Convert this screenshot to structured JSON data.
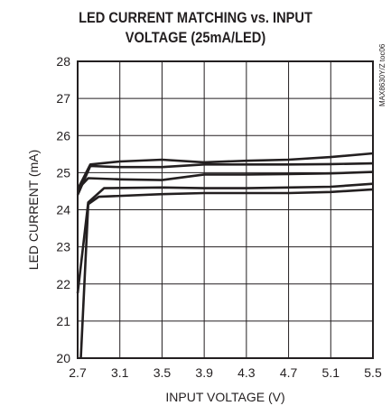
{
  "chart_data": {
    "type": "line",
    "title_line1": "LED CURRENT MATCHING vs. INPUT",
    "title_line2": "VOLTAGE (25mA/LED)",
    "xlabel": "INPUT VOLTAGE (V)",
    "ylabel": "LED CURRENT (mA)",
    "code": "MAX8630Y/Z toc06",
    "xlim": [
      2.7,
      5.5
    ],
    "ylim": [
      20,
      28
    ],
    "xticks": [
      "2.7",
      "3.1",
      "3.5",
      "3.9",
      "4.3",
      "4.7",
      "5.1",
      "5.5"
    ],
    "yticks": [
      "20",
      "21",
      "22",
      "23",
      "24",
      "25",
      "26",
      "27",
      "28"
    ],
    "grid": true,
    "series": [
      {
        "values": [
          [
            2.7,
            24.55
          ],
          [
            2.82,
            25.22
          ],
          [
            3.1,
            25.3
          ],
          [
            3.5,
            25.35
          ],
          [
            3.9,
            25.28
          ],
          [
            4.3,
            25.32
          ],
          [
            4.7,
            25.35
          ],
          [
            5.1,
            25.42
          ],
          [
            5.5,
            25.52
          ]
        ]
      },
      {
        "values": [
          [
            2.7,
            24.4
          ],
          [
            2.82,
            25.18
          ],
          [
            3.1,
            25.15
          ],
          [
            3.5,
            25.15
          ],
          [
            3.9,
            25.22
          ],
          [
            4.3,
            25.22
          ],
          [
            4.7,
            25.22
          ],
          [
            5.1,
            25.23
          ],
          [
            5.5,
            25.25
          ]
        ]
      },
      {
        "values": [
          [
            2.7,
            24.55
          ],
          [
            2.8,
            24.85
          ],
          [
            3.1,
            24.82
          ],
          [
            3.5,
            24.8
          ],
          [
            3.9,
            24.95
          ],
          [
            4.3,
            24.95
          ],
          [
            4.7,
            24.96
          ],
          [
            5.1,
            24.98
          ],
          [
            5.5,
            25.02
          ]
        ]
      },
      {
        "values": [
          [
            2.7,
            21.75
          ],
          [
            2.8,
            24.2
          ],
          [
            2.95,
            24.58
          ],
          [
            3.5,
            24.6
          ],
          [
            3.9,
            24.58
          ],
          [
            4.3,
            24.58
          ],
          [
            4.7,
            24.6
          ],
          [
            5.1,
            24.62
          ],
          [
            5.5,
            24.7
          ]
        ]
      },
      {
        "values": [
          [
            2.73,
            20.0
          ],
          [
            2.8,
            24.15
          ],
          [
            2.9,
            24.35
          ],
          [
            3.5,
            24.42
          ],
          [
            3.9,
            24.45
          ],
          [
            4.3,
            24.45
          ],
          [
            4.7,
            24.45
          ],
          [
            5.1,
            24.48
          ],
          [
            5.5,
            24.55
          ]
        ]
      }
    ],
    "line_color": "#231f20"
  }
}
